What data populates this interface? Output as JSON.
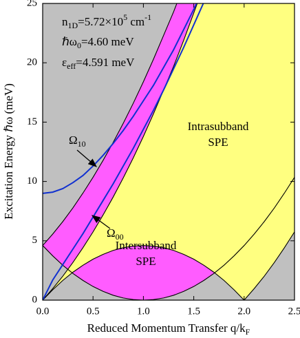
{
  "chart_data": {
    "type": "line",
    "xlabel": [
      "Reduced Momentum Transfer q/k",
      "F"
    ],
    "ylabel": "Excitation Energy ℏω (meV)",
    "xlim": [
      0,
      2.5
    ],
    "ylim": [
      0,
      25
    ],
    "xticks": [
      {
        "value": 0,
        "label": "0.0"
      },
      {
        "value": 0.5,
        "label": "0.5"
      },
      {
        "value": 1,
        "label": "1.0"
      },
      {
        "value": 1.5,
        "label": "1.5"
      },
      {
        "value": 2,
        "label": "2.0"
      },
      {
        "value": 2.5,
        "label": "2.5"
      }
    ],
    "yticks": [
      0,
      5,
      10,
      15,
      20,
      25
    ],
    "background": "#c0c0c0",
    "annotations": [
      [
        "n",
        "1D",
        "=5.72×10",
        "5",
        " cm",
        "-1"
      ],
      [
        "ℏω",
        "0",
        "=4.60 meV"
      ],
      [
        "ε",
        "eff",
        "=4.591 meV"
      ]
    ],
    "curve_labels": [
      [
        "Ω",
        "10"
      ],
      [
        "Ω",
        "00"
      ]
    ],
    "region_labels": [
      [
        "Intrasubband",
        "SPE"
      ],
      [
        "Intersubband",
        "SPE"
      ]
    ],
    "series": [
      {
        "color": "#000000",
        "fill": "#ff5cff",
        "x": [
          0,
          0.1,
          0.2,
          0.3,
          0.4,
          0.5,
          0.6,
          0.7,
          0.8,
          0.9,
          1.0,
          1.1,
          1.2,
          1.3,
          1.4,
          1.5,
          1.6,
          1.7,
          1.8,
          1.9,
          2.0,
          2.1,
          2.2,
          2.3,
          2.4,
          2.5
        ],
        "values": [
          4.6,
          3.73,
          2.94,
          2.25,
          1.66,
          1.15,
          0.74,
          0.41,
          0.18,
          0.05,
          0,
          0.05,
          0.18,
          0.41,
          0.74,
          1.15,
          1.66,
          2.25,
          2.94,
          3.73,
          4.6,
          5.57,
          6.62,
          7.77,
          9.02,
          10.35
        ]
      },
      {
        "color": "#000000",
        "x": [
          0,
          0.1,
          0.2,
          0.3,
          0.4,
          0.5,
          0.6,
          0.7,
          0.8,
          0.9,
          1.0,
          1.1,
          1.2,
          1.3,
          1.4
        ],
        "values": [
          4.6,
          5.57,
          6.62,
          7.77,
          9.02,
          10.35,
          11.78,
          13.29,
          14.9,
          16.6,
          18.4,
          20.3,
          22.3,
          24.3,
          26.5
        ]
      },
      {
        "color": "#000000",
        "fill": "#ffff80",
        "x": [
          0,
          0.1,
          0.2,
          0.3,
          0.4,
          0.5,
          0.6,
          0.7,
          0.8,
          0.9,
          1.0,
          1.1,
          1.2,
          1.3,
          1.4,
          1.5,
          1.6,
          1.7,
          1.8,
          1.9,
          2.0,
          2.1,
          2.2,
          2.3,
          2.4,
          2.5
        ],
        "values": [
          0,
          0.87,
          1.66,
          2.35,
          2.94,
          3.45,
          3.86,
          4.19,
          4.42,
          4.55,
          4.6,
          4.55,
          4.42,
          4.19,
          3.86,
          3.45,
          2.94,
          2.35,
          1.66,
          0.87,
          0,
          0.97,
          2.02,
          3.17,
          4.42,
          5.75
        ]
      },
      {
        "color": "#000000",
        "x": [
          0,
          0.1,
          0.2,
          0.3,
          0.4,
          0.5,
          0.6,
          0.7,
          0.8,
          0.9,
          1.0,
          1.1,
          1.2,
          1.3,
          1.4,
          1.5,
          1.6
        ],
        "values": [
          0,
          0.97,
          2.02,
          3.17,
          4.42,
          5.75,
          7.18,
          8.69,
          10.3,
          12.0,
          13.8,
          15.7,
          17.7,
          19.7,
          21.9,
          24.2,
          26.5
        ]
      },
      {
        "color": "#1030d0",
        "x": [
          0,
          0.1,
          0.2,
          0.3,
          0.4,
          0.5,
          0.6,
          0.7,
          0.8,
          0.9,
          1.0,
          1.1,
          1.2,
          1.3,
          1.4,
          1.5,
          1.55
        ],
        "values": [
          9,
          9.1,
          9.4,
          9.9,
          10.5,
          11.3,
          12.2,
          13.2,
          14.3,
          15.5,
          16.8,
          18.1,
          19.6,
          21.1,
          22.8,
          24.5,
          25.4
        ]
      },
      {
        "color": "#1030d0",
        "x": [
          0,
          0.1,
          0.2,
          0.3,
          0.4,
          0.5,
          0.6,
          0.7,
          0.8,
          0.9,
          1.0,
          1.1,
          1.2,
          1.3,
          1.4,
          1.5,
          1.6
        ],
        "values": [
          0,
          1.7,
          3.0,
          4.3,
          5.6,
          7.0,
          8.4,
          9.8,
          11.3,
          12.8,
          14.4,
          16.0,
          17.7,
          19.5,
          21.3,
          23.2,
          25.1
        ]
      }
    ]
  }
}
